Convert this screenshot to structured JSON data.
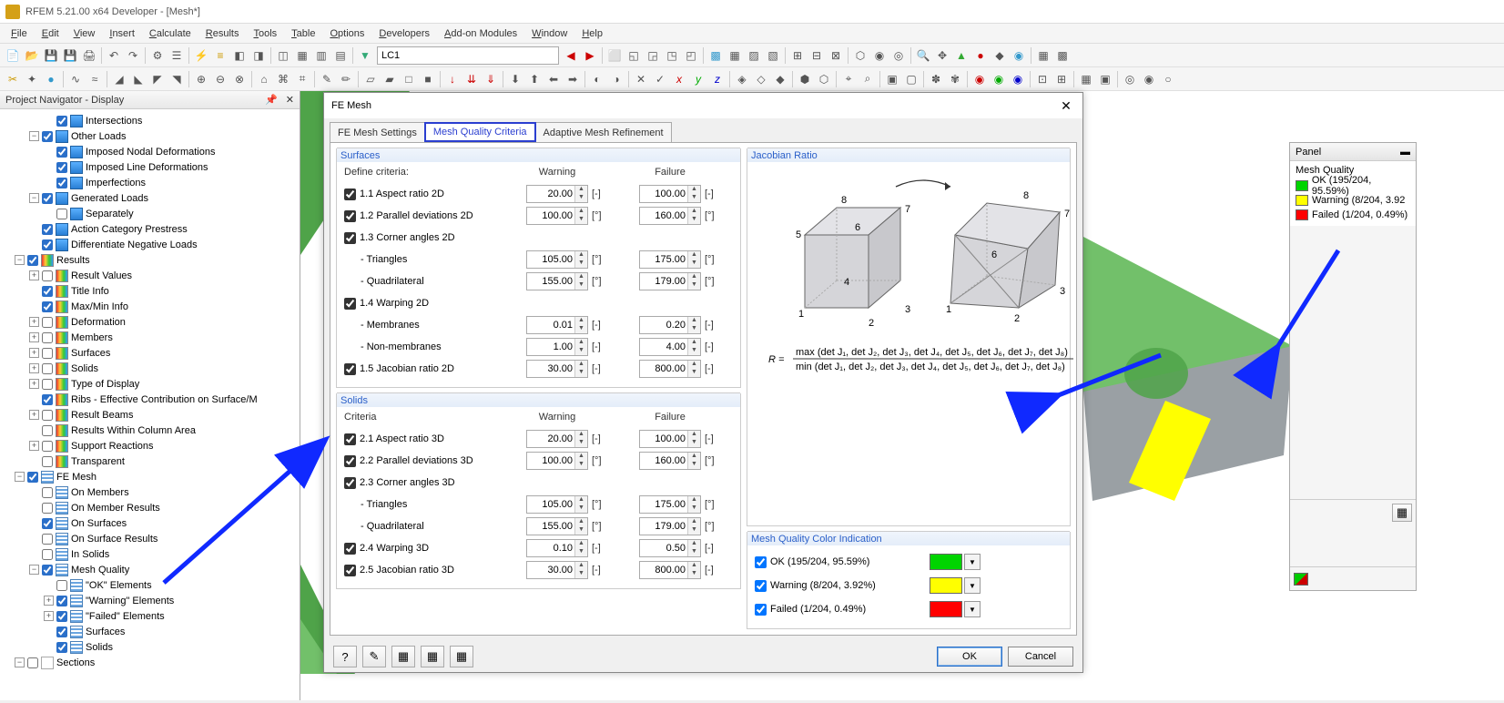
{
  "app": {
    "title": "RFEM 5.21.00 x64 Developer - [Mesh*]"
  },
  "menu": [
    "File",
    "Edit",
    "View",
    "Insert",
    "Calculate",
    "Results",
    "Tools",
    "Table",
    "Options",
    "Developers",
    "Add-on Modules",
    "Window",
    "Help"
  ],
  "lc_combo": "LC1",
  "navigator": {
    "title": "Project Navigator - Display",
    "items": [
      {
        "indent": 2,
        "cb": true,
        "icon": "ic-blue",
        "label": "Intersections"
      },
      {
        "indent": 1,
        "exp": "−",
        "cb": true,
        "icon": "ic-blue",
        "label": "Other Loads"
      },
      {
        "indent": 2,
        "cb": true,
        "icon": "ic-blue",
        "label": "Imposed Nodal Deformations"
      },
      {
        "indent": 2,
        "cb": true,
        "icon": "ic-blue",
        "label": "Imposed Line Deformations"
      },
      {
        "indent": 2,
        "cb": true,
        "icon": "ic-blue",
        "label": "Imperfections"
      },
      {
        "indent": 1,
        "exp": "−",
        "cb": true,
        "icon": "ic-blue",
        "label": "Generated Loads"
      },
      {
        "indent": 2,
        "cb": false,
        "icon": "ic-blue",
        "label": "Separately"
      },
      {
        "indent": 1,
        "cb": true,
        "icon": "ic-blue",
        "label": "Action Category Prestress"
      },
      {
        "indent": 1,
        "cb": true,
        "icon": "ic-blue",
        "label": "Differentiate Negative Loads"
      },
      {
        "indent": 0,
        "exp": "−",
        "cb": true,
        "icon": "ic-rainbow",
        "label": "Results"
      },
      {
        "indent": 1,
        "exp": "+",
        "cb": false,
        "icon": "ic-rainbow",
        "label": "Result Values"
      },
      {
        "indent": 1,
        "cb": true,
        "icon": "ic-rainbow",
        "label": "Title Info"
      },
      {
        "indent": 1,
        "cb": true,
        "icon": "ic-rainbow",
        "label": "Max/Min Info"
      },
      {
        "indent": 1,
        "exp": "+",
        "cb": false,
        "icon": "ic-rainbow",
        "label": "Deformation"
      },
      {
        "indent": 1,
        "exp": "+",
        "cb": false,
        "icon": "ic-rainbow",
        "label": "Members"
      },
      {
        "indent": 1,
        "exp": "+",
        "cb": false,
        "icon": "ic-rainbow",
        "label": "Surfaces"
      },
      {
        "indent": 1,
        "exp": "+",
        "cb": false,
        "icon": "ic-rainbow",
        "label": "Solids"
      },
      {
        "indent": 1,
        "exp": "+",
        "cb": false,
        "icon": "ic-rainbow",
        "label": "Type of Display"
      },
      {
        "indent": 1,
        "cb": true,
        "icon": "ic-rainbow",
        "label": "Ribs - Effective Contribution on Surface/M"
      },
      {
        "indent": 1,
        "exp": "+",
        "cb": false,
        "icon": "ic-rainbow",
        "label": "Result Beams"
      },
      {
        "indent": 1,
        "cb": false,
        "icon": "ic-rainbow",
        "label": "Results Within Column Area"
      },
      {
        "indent": 1,
        "exp": "+",
        "cb": false,
        "icon": "ic-rainbow",
        "label": "Support Reactions"
      },
      {
        "indent": 1,
        "cb": false,
        "icon": "ic-rainbow",
        "label": "Transparent"
      },
      {
        "indent": 0,
        "exp": "−",
        "cb": true,
        "icon": "ic-grid",
        "label": "FE Mesh"
      },
      {
        "indent": 1,
        "cb": false,
        "icon": "ic-grid",
        "label": "On Members"
      },
      {
        "indent": 1,
        "cb": false,
        "icon": "ic-grid",
        "label": "On Member Results"
      },
      {
        "indent": 1,
        "cb": true,
        "icon": "ic-grid",
        "label": "On Surfaces"
      },
      {
        "indent": 1,
        "cb": false,
        "icon": "ic-grid",
        "label": "On Surface Results"
      },
      {
        "indent": 1,
        "cb": false,
        "icon": "ic-grid",
        "label": "In Solids"
      },
      {
        "indent": 1,
        "exp": "−",
        "cb": true,
        "icon": "ic-grid",
        "label": "Mesh Quality"
      },
      {
        "indent": 2,
        "cb": false,
        "icon": "ic-grid",
        "label": "\"OK\" Elements"
      },
      {
        "indent": 2,
        "exp": "+",
        "cb": true,
        "icon": "ic-grid",
        "label": "\"Warning\" Elements"
      },
      {
        "indent": 2,
        "exp": "+",
        "cb": true,
        "icon": "ic-grid",
        "label": "\"Failed\" Elements"
      },
      {
        "indent": 2,
        "cb": true,
        "icon": "ic-grid",
        "label": "Surfaces"
      },
      {
        "indent": 2,
        "cb": true,
        "icon": "ic-grid",
        "label": "Solids"
      },
      {
        "indent": 0,
        "exp": "−",
        "cb": false,
        "icon": "ic-plain",
        "label": "Sections"
      }
    ]
  },
  "dialog": {
    "title": "FE Mesh",
    "tabs": [
      "FE Mesh Settings",
      "Mesh Quality Criteria",
      "Adaptive Mesh Refinement"
    ],
    "active_tab": 1,
    "surfaces": {
      "title": "Surfaces",
      "header": {
        "criteria": "Define criteria:",
        "warning": "Warning",
        "failure": "Failure"
      },
      "rows": [
        {
          "cb": true,
          "label": "1.1 Aspect ratio 2D",
          "warn": "20.00",
          "fail": "100.00",
          "unit": "[-]"
        },
        {
          "cb": true,
          "label": "1.2 Parallel deviations 2D",
          "warn": "100.00",
          "fail": "160.00",
          "unit": "[°]"
        },
        {
          "cb": true,
          "label": "1.3 Corner angles 2D",
          "warn": "",
          "fail": "",
          "unit": ""
        },
        {
          "sub": true,
          "label": "- Triangles",
          "warn": "105.00",
          "fail": "175.00",
          "unit": "[°]"
        },
        {
          "sub": true,
          "label": "- Quadrilateral",
          "warn": "155.00",
          "fail": "179.00",
          "unit": "[°]"
        },
        {
          "cb": true,
          "label": "1.4 Warping 2D",
          "warn": "",
          "fail": "",
          "unit": ""
        },
        {
          "sub": true,
          "label": "- Membranes",
          "warn": "0.01",
          "fail": "0.20",
          "unit": "[-]"
        },
        {
          "sub": true,
          "label": "- Non-membranes",
          "warn": "1.00",
          "fail": "4.00",
          "unit": "[-]"
        },
        {
          "cb": true,
          "label": "1.5 Jacobian ratio 2D",
          "warn": "30.00",
          "fail": "800.00",
          "unit": "[-]"
        }
      ]
    },
    "solids": {
      "title": "Solids",
      "header": {
        "criteria": "Criteria",
        "warning": "Warning",
        "failure": "Failure"
      },
      "rows": [
        {
          "cb": true,
          "label": "2.1 Aspect ratio 3D",
          "warn": "20.00",
          "fail": "100.00",
          "unit": "[-]"
        },
        {
          "cb": true,
          "label": "2.2 Parallel deviations 3D",
          "warn": "100.00",
          "fail": "160.00",
          "unit": "[°]"
        },
        {
          "cb": true,
          "label": "2.3 Corner angles 3D",
          "warn": "",
          "fail": "",
          "unit": ""
        },
        {
          "sub": true,
          "label": "- Triangles",
          "warn": "105.00",
          "fail": "175.00",
          "unit": "[°]"
        },
        {
          "sub": true,
          "label": "- Quadrilateral",
          "warn": "155.00",
          "fail": "179.00",
          "unit": "[°]"
        },
        {
          "cb": true,
          "label": "2.4 Warping 3D",
          "warn": "0.10",
          "fail": "0.50",
          "unit": "[-]"
        },
        {
          "cb": true,
          "label": "2.5 Jacobian ratio 3D",
          "warn": "30.00",
          "fail": "800.00",
          "unit": "[-]"
        }
      ]
    },
    "jacobian_title": "Jacobian Ratio",
    "formula": "R = max (det J₁, det J₂, det J₃, det J₄, det J₅, det J₆, det J₇, det J₈) / min (det J₁, det J₂, det J₃, det J₄, det J₅, det J₆, det J₇, det J₈)",
    "color_ind": {
      "title": "Mesh Quality Color Indication",
      "rows": [
        {
          "label": "OK (195/204, 95.59%)",
          "color": "#00d400"
        },
        {
          "label": "Warning (8/204, 3.92%)",
          "color": "#ffff00"
        },
        {
          "label": "Failed (1/204, 0.49%)",
          "color": "#ff0000"
        }
      ]
    },
    "buttons": {
      "ok": "OK",
      "cancel": "Cancel"
    }
  },
  "panel": {
    "title": "Panel",
    "subtitle": "Mesh Quality",
    "legend": [
      {
        "label": "OK (195/204, 95.59%)",
        "color": "#00d400"
      },
      {
        "label": "Warning (8/204, 3.92",
        "color": "#ffff00"
      },
      {
        "label": "Failed (1/204, 0.49%)",
        "color": "#ff0000"
      }
    ]
  },
  "colors": {
    "highlight_border": "#2a3ed0",
    "arrow": "#1029ff",
    "model_green_light": "#72c06a",
    "model_green_mid": "#4fa349",
    "model_green_dark": "#357f30",
    "model_grey": "#9aa0a4",
    "model_yellow": "#ffff00"
  }
}
